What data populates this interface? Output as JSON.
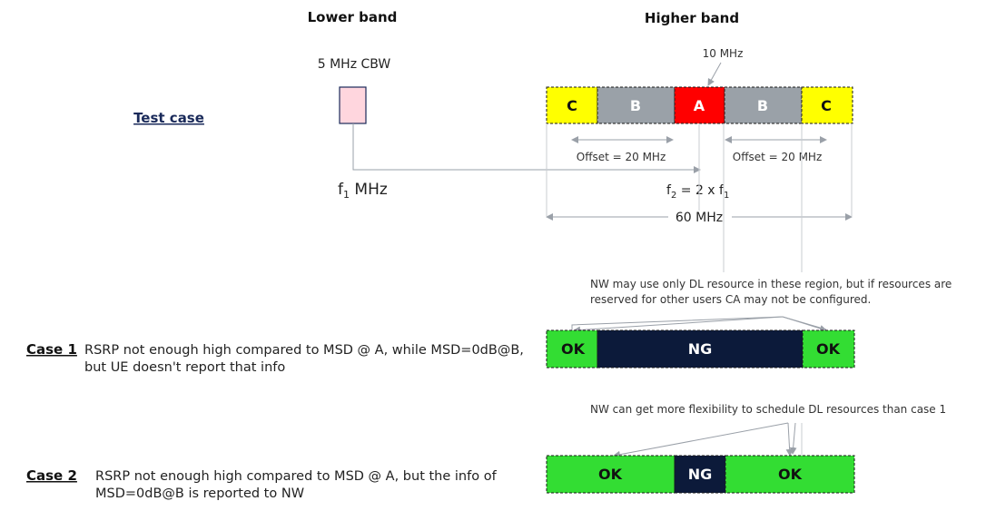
{
  "headers": {
    "lower": "Lower band",
    "higher": "Higher band"
  },
  "test_case_label": "Test case",
  "lower_band": {
    "cbw_label": "5 MHz CBW",
    "freq_label_main": "f",
    "freq_label_sub": "1",
    "freq_label_unit": " MHz"
  },
  "higher_band": {
    "a_width_label": "10 MHz",
    "segments": [
      {
        "label": "C",
        "color": "#ffff00",
        "text_color": "#111111"
      },
      {
        "label": "B",
        "color": "#9aa1a8",
        "text_color": "#ffffff"
      },
      {
        "label": "A",
        "color": "#ff0000",
        "text_color": "#ffffff"
      },
      {
        "label": "B",
        "color": "#9aa1a8",
        "text_color": "#ffffff"
      },
      {
        "label": "C",
        "color": "#ffff00",
        "text_color": "#111111"
      }
    ],
    "offset_left": "Offset = 20 MHz",
    "offset_right": "Offset = 20 MHz",
    "f2_prefix": "f",
    "f2_sub": "2",
    "f2_mid": " = 2 x f",
    "f2_sub2": "1",
    "total_width": "60 MHz"
  },
  "note1": {
    "line1": "NW may use only DL resource in these region, but if resources are",
    "line2": "reserved for other users CA may not be configured."
  },
  "note2": "NW can get more flexibility to schedule DL resources than case 1",
  "cases": [
    {
      "title": "Case 1",
      "desc_line1": "RSRP not enough high compared to MSD @ A, while MSD=0dB@B,",
      "desc_line2": "but UE doesn't report that info",
      "segments": [
        {
          "label": "OK",
          "color": "#33dd33",
          "text_color": "#111111"
        },
        {
          "label": "NG",
          "color": "#0c1a3a",
          "text_color": "#ffffff"
        },
        {
          "label": "OK",
          "color": "#33dd33",
          "text_color": "#111111"
        }
      ]
    },
    {
      "title": "Case 2",
      "desc_line1": "RSRP not enough high compared to MSD @ A, but the info of",
      "desc_line2": "MSD=0dB@B is reported to NW",
      "segments": [
        {
          "label": "OK",
          "color": "#33dd33",
          "text_color": "#111111"
        },
        {
          "label": "NG",
          "color": "#0c1a3a",
          "text_color": "#ffffff"
        },
        {
          "label": "OK",
          "color": "#33dd33",
          "text_color": "#111111"
        }
      ]
    }
  ],
  "colors": {
    "arrow": "#9aa0a8",
    "lower_box": "#ffd6de",
    "box_border": "#1a2a5a"
  }
}
